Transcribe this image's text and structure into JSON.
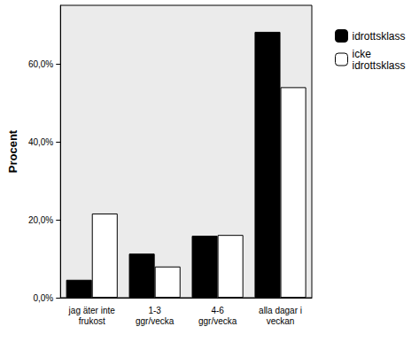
{
  "chart_data": {
    "type": "bar",
    "y_label": "Procent",
    "categories": [
      "jag äter inte\nfrukost",
      "1-3\nggr/vecka",
      "4-6\nggr/vecka",
      "alla dagar i\nveckan"
    ],
    "series": [
      {
        "name": "idrottsklass",
        "color": "#000000",
        "values": [
          4.6,
          11.3,
          15.9,
          68.2
        ]
      },
      {
        "name": "icke\nidrottsklass",
        "color": "#ffffff",
        "values": [
          21.6,
          8.0,
          16.1,
          54.0
        ]
      }
    ],
    "ylim": [
      0,
      75
    ],
    "yticks": [
      {
        "value": 0,
        "label": "0,0%"
      },
      {
        "value": 20,
        "label": "20,0%"
      },
      {
        "value": 40,
        "label": "40,0%"
      },
      {
        "value": 60,
        "label": "60,0%"
      }
    ],
    "grid": false,
    "legend": "right"
  }
}
